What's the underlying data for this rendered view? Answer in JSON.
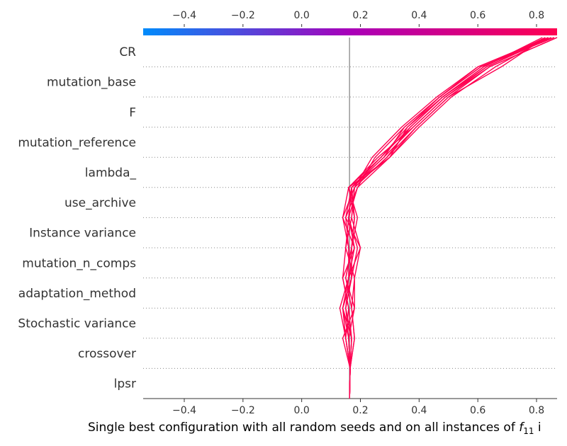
{
  "chart_data": {
    "type": "line",
    "subtype": "shap-decision-plot",
    "xlabel": {
      "prefix": "Single best configuration with all random seeds and on all instances of ",
      "symbol": "f",
      "subscript": "11",
      "suffix": " i"
    },
    "ylabel": "",
    "xlim": [
      -0.54,
      0.87
    ],
    "x_ticks": [
      -0.4,
      -0.2,
      0.0,
      0.2,
      0.4,
      0.6,
      0.8
    ],
    "x_tick_labels": [
      "−0.4",
      "−0.2",
      "0.0",
      "0.2",
      "0.4",
      "0.6",
      "0.8"
    ],
    "base_value": 0.163,
    "features": [
      "CR",
      "mutation_base",
      "F",
      "mutation_reference",
      "lambda_",
      "use_archive",
      "Instance variance",
      "mutation_n_comps",
      "adaptation_method",
      "Stochastic variance",
      "crossover",
      "lpsr"
    ],
    "line_color": "#ff0051",
    "base_line_color": "#999999",
    "colorbar": {
      "from": "#008bfb",
      "mid": "#a900b9",
      "to": "#ff0051"
    },
    "grid": "dotted-horizontal",
    "series": [
      {
        "values": [
          0.163,
          0.165,
          0.15,
          0.14,
          0.16,
          0.2,
          0.15,
          0.19,
          0.3,
          0.36,
          0.48,
          0.62,
          0.83
        ]
      },
      {
        "values": [
          0.163,
          0.165,
          0.16,
          0.15,
          0.17,
          0.19,
          0.16,
          0.17,
          0.28,
          0.35,
          0.47,
          0.61,
          0.86
        ]
      },
      {
        "values": [
          0.163,
          0.165,
          0.17,
          0.16,
          0.14,
          0.18,
          0.14,
          0.18,
          0.24,
          0.34,
          0.46,
          0.6,
          0.85
        ]
      },
      {
        "values": [
          0.163,
          0.165,
          0.18,
          0.17,
          0.15,
          0.17,
          0.18,
          0.16,
          0.26,
          0.38,
          0.49,
          0.63,
          0.84
        ]
      },
      {
        "values": [
          0.163,
          0.165,
          0.14,
          0.18,
          0.18,
          0.15,
          0.17,
          0.18,
          0.29,
          0.39,
          0.5,
          0.64,
          0.87
        ]
      },
      {
        "values": [
          0.163,
          0.165,
          0.15,
          0.13,
          0.16,
          0.16,
          0.15,
          0.17,
          0.27,
          0.37,
          0.48,
          0.62,
          0.82
        ]
      },
      {
        "values": [
          0.163,
          0.165,
          0.16,
          0.14,
          0.17,
          0.17,
          0.19,
          0.16,
          0.3,
          0.4,
          0.51,
          0.66,
          0.84
        ]
      },
      {
        "values": [
          0.163,
          0.165,
          0.17,
          0.15,
          0.16,
          0.18,
          0.16,
          0.19,
          0.25,
          0.35,
          0.47,
          0.61,
          0.86
        ]
      },
      {
        "values": [
          0.163,
          0.165,
          0.18,
          0.17,
          0.18,
          0.2,
          0.17,
          0.18,
          0.29,
          0.37,
          0.48,
          0.63,
          0.85
        ]
      },
      {
        "values": [
          0.163,
          0.165,
          0.15,
          0.16,
          0.14,
          0.15,
          0.16,
          0.17,
          0.28,
          0.38,
          0.49,
          0.64,
          0.87
        ]
      },
      {
        "values": [
          0.163,
          0.165,
          0.16,
          0.18,
          0.15,
          0.17,
          0.18,
          0.17,
          0.3,
          0.39,
          0.5,
          0.68,
          0.83
        ]
      },
      {
        "values": [
          0.163,
          0.165,
          0.17,
          0.14,
          0.17,
          0.16,
          0.14,
          0.16,
          0.27,
          0.36,
          0.47,
          0.6,
          0.84
        ]
      }
    ]
  }
}
